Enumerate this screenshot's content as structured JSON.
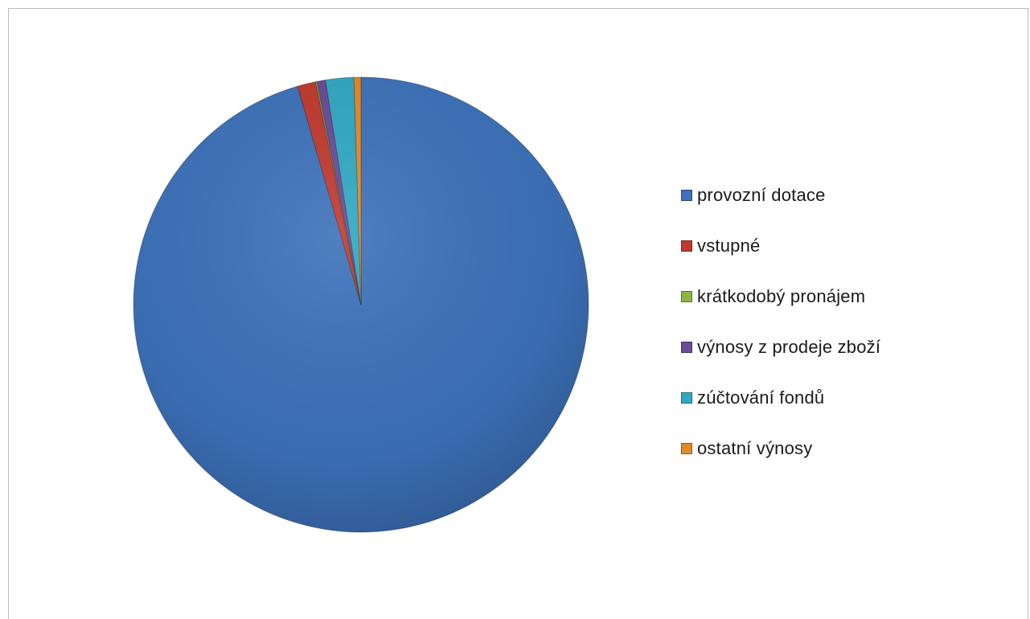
{
  "chart_data": {
    "type": "pie",
    "title": "",
    "start_angle_deg": 0,
    "direction": "clockwise",
    "legend_position": "right",
    "slices": [
      {
        "label": "provozní dotace",
        "value": 95.5,
        "color": "#3d72bb"
      },
      {
        "label": "vstupné",
        "value": 1.3,
        "color": "#c0392f"
      },
      {
        "label": "krátkodobý pronájem",
        "value": 0.1,
        "color": "#8fb440"
      },
      {
        "label": "výnosy z prodeje zboží",
        "value": 0.6,
        "color": "#6b4a9a"
      },
      {
        "label": "zúčtování fondů",
        "value": 2.0,
        "color": "#2fa9c3"
      },
      {
        "label": "ostatní výnosy",
        "value": 0.5,
        "color": "#e08a2e"
      }
    ]
  }
}
